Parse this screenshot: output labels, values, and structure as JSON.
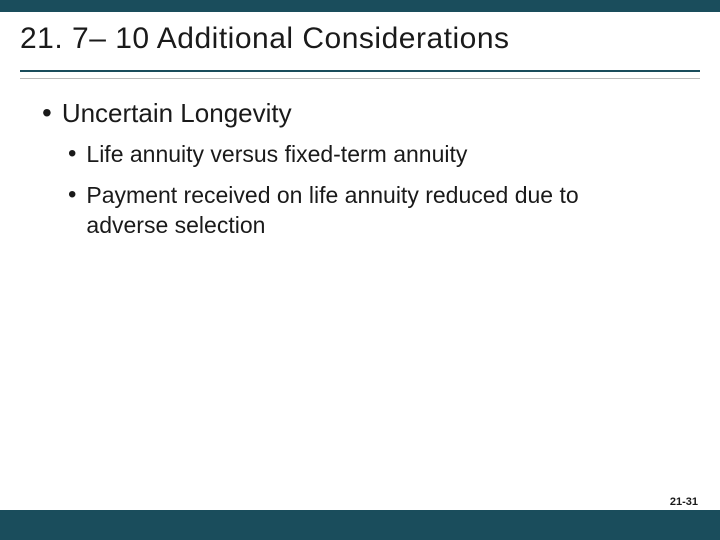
{
  "slide": {
    "title": "21. 7– 10 Additional Considerations",
    "page_number": "21-31",
    "colors": {
      "bar": "#1a4d5c",
      "text": "#1a1a1a",
      "background": "#ffffff",
      "thin_rule": "#bbbbbb"
    },
    "typography": {
      "title_fontsize": 30,
      "l1_fontsize": 26,
      "l2_fontsize": 23,
      "page_number_fontsize": 11,
      "font_family": "Arial"
    },
    "bullets": [
      {
        "level": 1,
        "text": "Uncertain Longevity",
        "children": [
          {
            "level": 2,
            "text": "Life annuity versus fixed-term annuity"
          },
          {
            "level": 2,
            "text": "Payment received on life annuity reduced due to adverse selection"
          }
        ]
      }
    ]
  }
}
